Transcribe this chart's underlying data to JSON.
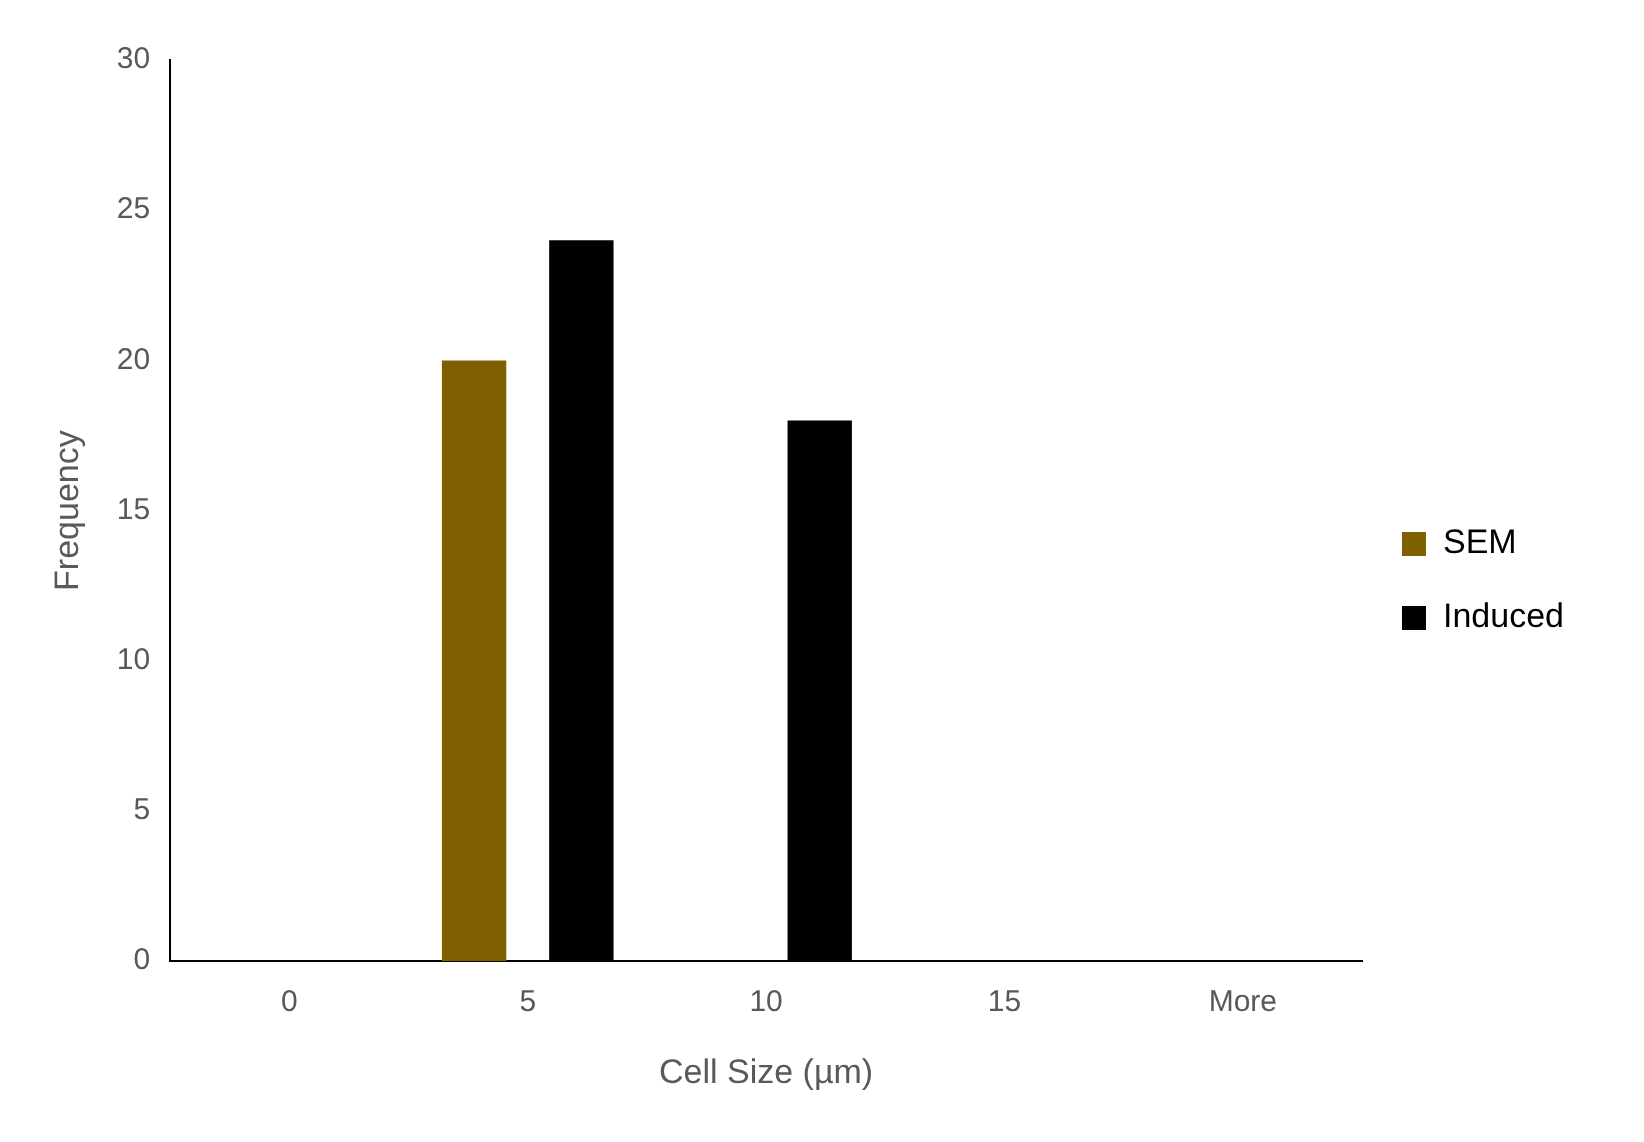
{
  "chart_data": {
    "type": "bar",
    "xlabel": "Cell Size (µm)",
    "ylabel": "Frequency",
    "categories": [
      "0",
      "5",
      "10",
      "15",
      "More"
    ],
    "series": [
      {
        "name": "SEM",
        "color": "#7f6000",
        "values": [
          0,
          20,
          0,
          0,
          0
        ]
      },
      {
        "name": "Induced",
        "color": "#000000",
        "values": [
          0,
          24,
          18,
          0,
          0
        ]
      }
    ],
    "ylim": [
      0,
      30
    ],
    "yticks": [
      0,
      5,
      10,
      15,
      20,
      25,
      30
    ],
    "grid": false,
    "legend": "right"
  }
}
